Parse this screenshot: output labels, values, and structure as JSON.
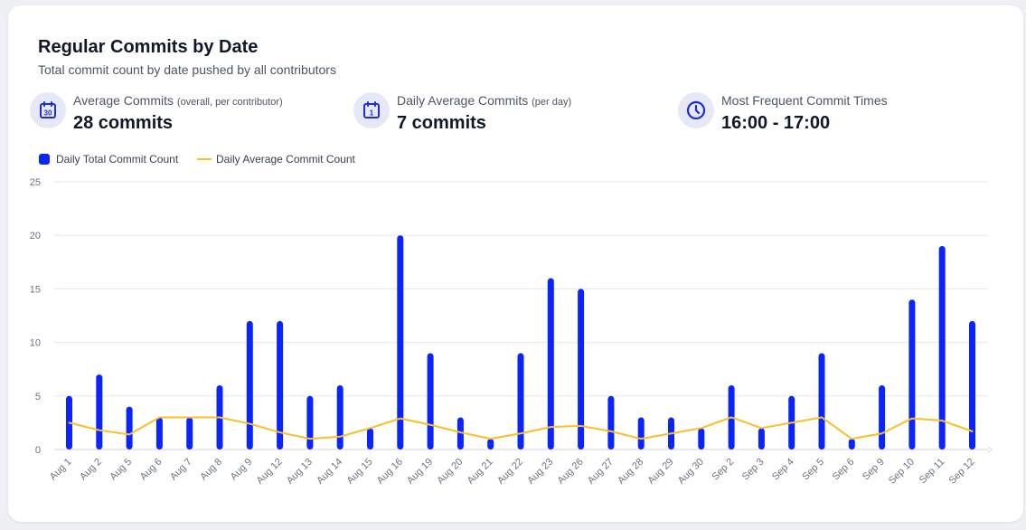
{
  "header": {
    "title": "Regular Commits by Date",
    "subtitle": "Total commit count by date pushed by all contributors"
  },
  "stats": [
    {
      "label": "Average Commits",
      "qualifier": "(overall, per contributor)",
      "value": "28 commits",
      "icon": "calendar-30-icon",
      "icon_text": "30"
    },
    {
      "label": "Daily Average Commits",
      "qualifier": "(per day)",
      "value": "7 commits",
      "icon": "calendar-1-icon",
      "icon_text": "1"
    },
    {
      "label": "Most Frequent Commit Times",
      "qualifier": "",
      "value": "16:00 - 17:00",
      "icon": "clock-icon"
    }
  ],
  "colors": {
    "bar": "#0a24ff",
    "line": "#fbbf24",
    "grid": "#e5e7eb",
    "icon_bg": "#e6e8f8",
    "icon_fg": "#1d2fd1"
  },
  "chart_data": {
    "type": "bar",
    "categories": [
      "Aug 1",
      "Aug 2",
      "Aug 5",
      "Aug 6",
      "Aug 7",
      "Aug 8",
      "Aug 9",
      "Aug 12",
      "Aug 13",
      "Aug 14",
      "Aug 15",
      "Aug 16",
      "Aug 19",
      "Aug 20",
      "Aug 21",
      "Aug 22",
      "Aug 23",
      "Aug 26",
      "Aug 27",
      "Aug 28",
      "Aug 29",
      "Aug 30",
      "Sep 2",
      "Sep 3",
      "Sep 4",
      "Sep 5",
      "Sep 6",
      "Sep 9",
      "Sep 10",
      "Sep 11",
      "Sep 12"
    ],
    "series": [
      {
        "name": "Daily Total Commit Count",
        "type": "bar",
        "values": [
          5,
          7,
          4,
          3,
          3,
          6,
          12,
          12,
          5,
          6,
          2,
          20,
          9,
          3,
          1,
          9,
          16,
          15,
          5,
          3,
          3,
          2,
          6,
          2,
          5,
          9,
          1,
          6,
          14,
          19,
          12
        ]
      },
      {
        "name": "Daily Average Commit Count",
        "type": "line",
        "values": [
          2.5,
          1.8,
          1.4,
          3,
          3,
          3,
          2.4,
          1.6,
          1,
          1.2,
          2,
          2.9,
          2.3,
          1.6,
          1,
          1.5,
          2.1,
          2.2,
          1.7,
          1,
          1.5,
          2,
          3,
          2,
          2.5,
          3,
          1,
          1.5,
          2.9,
          2.7,
          1.7
        ]
      }
    ],
    "yticks": [
      0,
      5,
      10,
      15,
      20,
      25
    ],
    "ylim": [
      0,
      25
    ],
    "grid": true,
    "legend_position": "top-left"
  }
}
